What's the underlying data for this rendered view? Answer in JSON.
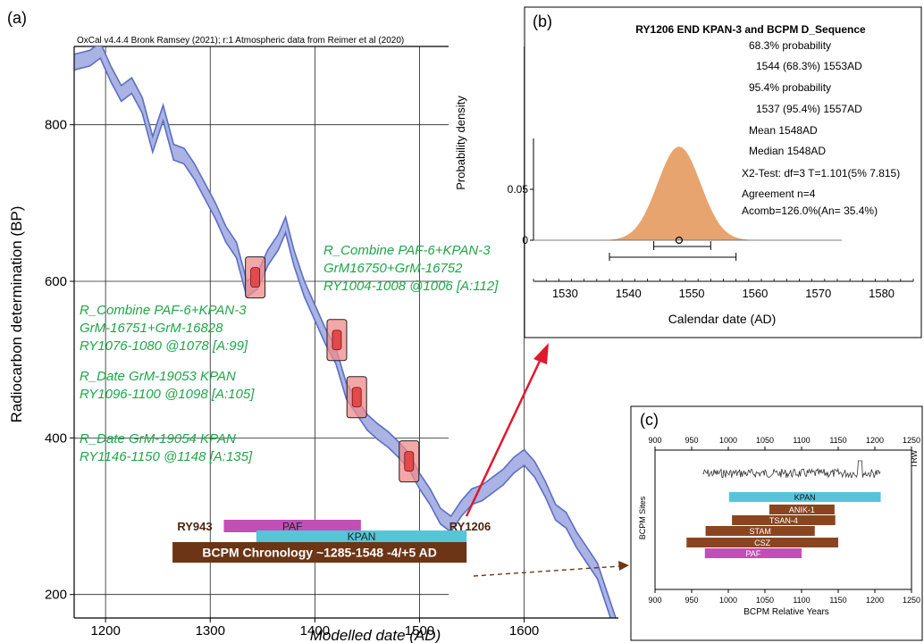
{
  "chart_data": [
    {
      "panel": "(a)",
      "type": "line",
      "header": "OxCal v4.4.4 Bronk Ramsey (2021); r:1 Atmospheric data from Reimer et al (2020)",
      "xlabel": "Modelled date (AD)",
      "ylabel": "Radiocarbon determination (BP)",
      "xlim": [
        1170,
        1690
      ],
      "ylim": [
        170,
        900
      ],
      "x_ticks": [
        "1200",
        "1300",
        "1400",
        "1500",
        "1600"
      ],
      "y_ticks": [
        "200",
        "400",
        "600",
        "800"
      ],
      "calibration_curve": {
        "x": [
          1170,
          1185,
          1195,
          1205,
          1215,
          1225,
          1235,
          1245,
          1255,
          1265,
          1275,
          1285,
          1295,
          1305,
          1315,
          1325,
          1335,
          1345,
          1355,
          1365,
          1372,
          1380,
          1390,
          1400,
          1410,
          1420,
          1430,
          1440,
          1450,
          1460,
          1470,
          1480,
          1490,
          1500,
          1510,
          1520,
          1530,
          1540,
          1550,
          1560,
          1570,
          1580,
          1590,
          1600,
          1610,
          1620,
          1630,
          1640,
          1650,
          1660,
          1670,
          1680,
          1690
        ],
        "y": [
          880,
          885,
          895,
          865,
          840,
          850,
          825,
          775,
          815,
          765,
          760,
          740,
          715,
          690,
          660,
          640,
          590,
          600,
          630,
          650,
          672,
          630,
          590,
          560,
          530,
          505,
          460,
          440,
          420,
          408,
          398,
          385,
          370,
          345,
          325,
          300,
          290,
          310,
          325,
          330,
          340,
          350,
          365,
          375,
          360,
          335,
          305,
          295,
          270,
          250,
          230,
          190,
          150
        ],
        "band_half_width": 10
      },
      "samples": [
        {
          "x": 1343,
          "y": 605
        },
        {
          "x": 1421,
          "y": 525
        },
        {
          "x": 1440,
          "y": 452
        },
        {
          "x": 1490,
          "y": 370
        }
      ],
      "annotations": [
        [
          "R_Combine PAF-6+KPAN-3",
          "GrM16750+GrM-16752",
          "RY1004-1008 @1006 [A:112]"
        ],
        [
          "R_Combine PAF-6+KPAN-3",
          "GrM-16751+GrM-16828",
          "RY1076-1080 @1078 [A:99]"
        ],
        [
          "R_Date GrM-19053 KPAN",
          "RY1096-1100 @1098 [A:105]"
        ],
        [
          "R_Date GrM-19054 KPAN",
          "RY1146-1150 @1148 [A:135]"
        ]
      ],
      "bars": [
        {
          "label": "PAF",
          "start": 1313,
          "end": 1444,
          "color": "#c14fb6"
        },
        {
          "label": "KPAN",
          "start": 1344,
          "end": 1545,
          "color": "#57c4d8"
        },
        {
          "label": "BCPM Chronology ~1285-1548 -4/+5 AD",
          "start": 1264,
          "end": 1545,
          "color": "#6b3516"
        }
      ],
      "bar_end_labels": {
        "left": "RY943",
        "right": "RY1206"
      },
      "colors": {
        "curve": "#5b6fc4",
        "band": "#aab3e3",
        "sample": "#f08a8a",
        "arrow": "#e0192d",
        "annotation": "#1fa64a"
      }
    },
    {
      "panel": "(b)",
      "type": "area",
      "title": "RY1206 END KPAN-3 and BCPM D_Sequence",
      "xlabel": "Calendar date (AD)",
      "ylabel": "Probability density",
      "xlim": [
        1525,
        1585
      ],
      "x_ticks": [
        "1530",
        "1540",
        "1550",
        "1560",
        "1570",
        "1580"
      ],
      "y_ticks": [
        "0",
        "0.05"
      ],
      "stats": [
        "68.3% probability",
        "1544 (68.3%) 1553AD",
        "95.4% probability",
        "1537 (95.4%) 1557AD",
        "Mean 1548AD",
        "Median 1548AD",
        "X2-Test: df=3 T=1.101(5% 7.815)",
        "Agreement n=4",
        "Acomb=126.0%(An= 35.4%)"
      ],
      "distribution": {
        "mean": 1548,
        "sd": 3.4,
        "peak_density": 0.092
      },
      "range_68": [
        1544,
        1553
      ],
      "range_95": [
        1537,
        1557
      ],
      "color": "#e8a46f"
    },
    {
      "panel": "(c)",
      "type": "bar",
      "xlabel": "BCPM Relative Years",
      "ylabel": "BCPM Sites",
      "right_label": "TRW",
      "xlim": [
        900,
        1250
      ],
      "x_ticks": [
        "900",
        "950",
        "1000",
        "1050",
        "1100",
        "1150",
        "1200",
        "1250"
      ],
      "trw_range": [
        965,
        1208
      ],
      "bars": [
        {
          "label": "KPAN",
          "start": 1001,
          "end": 1208,
          "color": "#57c4d8"
        },
        {
          "label": "ANIK-1",
          "start": 1056,
          "end": 1145,
          "color": "#8a4520"
        },
        {
          "label": "TSAN-4",
          "start": 1005,
          "end": 1146,
          "color": "#8a4520"
        },
        {
          "label": "STAM",
          "start": 969,
          "end": 1118,
          "color": "#8a4520"
        },
        {
          "label": "CSZ",
          "start": 943,
          "end": 1150,
          "color": "#8a4520"
        },
        {
          "label": "PAF",
          "start": 968,
          "end": 1100,
          "color": "#c14fb6"
        }
      ]
    }
  ]
}
